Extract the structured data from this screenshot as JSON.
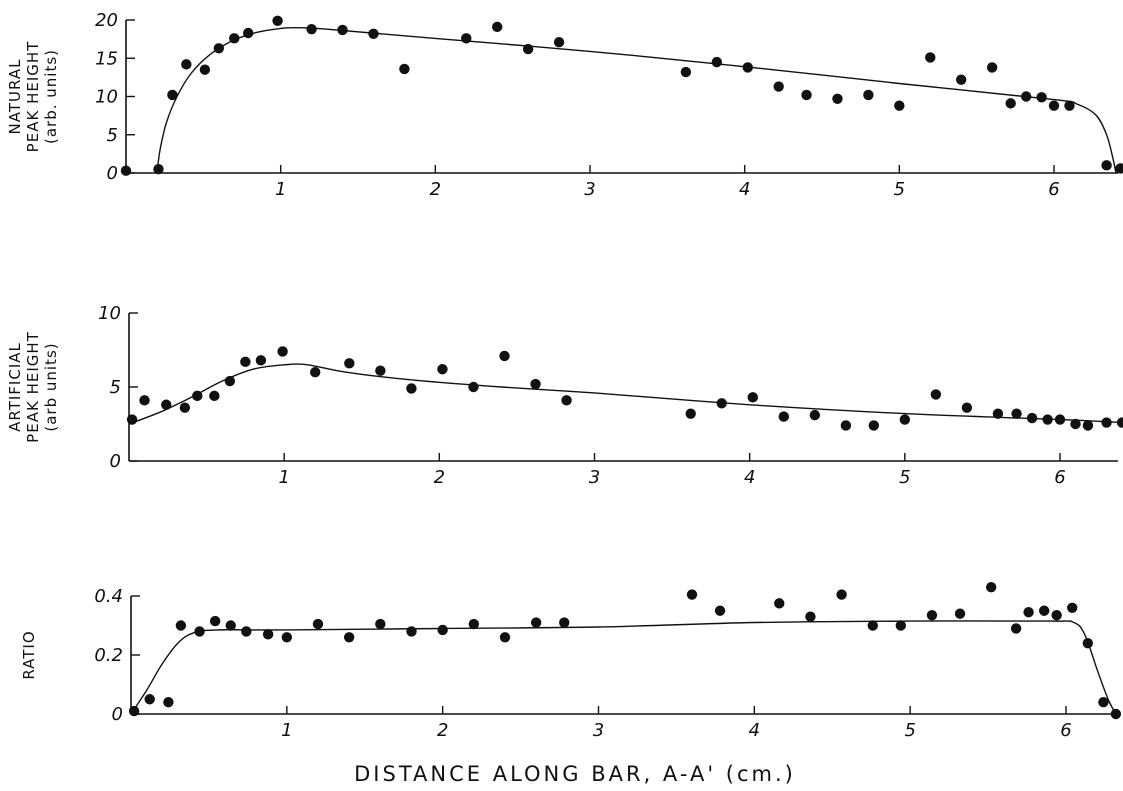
{
  "xlabel": "DISTANCE ALONG BAR, A-A' (cm.)",
  "chart_data": [
    {
      "type": "scatter",
      "ylabel_lines": [
        "NATURAL",
        "PEAK HEIGHT",
        "(arb. units)"
      ],
      "xlim": [
        0,
        6.4
      ],
      "ylim": [
        0,
        20
      ],
      "xticks": [
        1,
        2,
        3,
        4,
        5,
        6
      ],
      "xtick_labels": [
        "1",
        "2",
        "3",
        "4",
        "5",
        "6"
      ],
      "yticks": [
        0,
        5,
        10,
        15,
        20
      ],
      "ytick_labels": [
        "0",
        "5",
        "10",
        "15",
        "20"
      ],
      "grid": false,
      "points": [
        [
          0.0,
          0.3
        ],
        [
          0.21,
          0.5
        ],
        [
          0.3,
          10.2
        ],
        [
          0.39,
          14.2
        ],
        [
          0.51,
          13.5
        ],
        [
          0.6,
          16.3
        ],
        [
          0.7,
          17.6
        ],
        [
          0.79,
          18.3
        ],
        [
          0.98,
          19.9
        ],
        [
          1.2,
          18.8
        ],
        [
          1.4,
          18.7
        ],
        [
          1.6,
          18.2
        ],
        [
          1.8,
          13.6
        ],
        [
          2.2,
          17.6
        ],
        [
          2.4,
          19.1
        ],
        [
          2.6,
          16.2
        ],
        [
          2.8,
          17.1
        ],
        [
          3.62,
          13.2
        ],
        [
          3.82,
          14.5
        ],
        [
          4.02,
          13.8
        ],
        [
          4.22,
          11.3
        ],
        [
          4.4,
          10.2
        ],
        [
          4.6,
          9.7
        ],
        [
          4.8,
          10.2
        ],
        [
          5.0,
          8.8
        ],
        [
          5.2,
          15.1
        ],
        [
          5.4,
          12.2
        ],
        [
          5.6,
          13.8
        ],
        [
          5.72,
          9.1
        ],
        [
          5.82,
          10.0
        ],
        [
          5.92,
          9.9
        ],
        [
          6.0,
          8.8
        ],
        [
          6.1,
          8.8
        ],
        [
          6.34,
          1.0
        ],
        [
          6.43,
          0.6
        ]
      ],
      "fit_curve": [
        [
          0.2,
          0
        ],
        [
          0.22,
          3
        ],
        [
          0.26,
          6.5
        ],
        [
          0.33,
          10
        ],
        [
          0.42,
          13
        ],
        [
          0.55,
          15.6
        ],
        [
          0.7,
          17.4
        ],
        [
          0.85,
          18.4
        ],
        [
          1.0,
          18.9
        ],
        [
          1.1,
          19.0
        ],
        [
          1.3,
          18.8
        ],
        [
          2.0,
          17.6
        ],
        [
          3.0,
          15.9
        ],
        [
          4.0,
          13.9
        ],
        [
          5.0,
          11.7
        ],
        [
          6.0,
          9.6
        ],
        [
          6.15,
          9.0
        ],
        [
          6.27,
          7.6
        ],
        [
          6.34,
          5.0
        ],
        [
          6.38,
          2.0
        ],
        [
          6.4,
          0
        ]
      ]
    },
    {
      "type": "scatter",
      "ylabel_lines": [
        "ARTIFICIAL",
        "PEAK HEIGHT",
        "(arb units)"
      ],
      "xlim": [
        0,
        6.4
      ],
      "ylim": [
        0,
        10
      ],
      "xticks": [
        1,
        2,
        3,
        4,
        5,
        6
      ],
      "xtick_labels": [
        "1",
        "2",
        "3",
        "4",
        "5",
        "6"
      ],
      "yticks": [
        0,
        5,
        10
      ],
      "ytick_labels": [
        "0",
        "5",
        "10"
      ],
      "grid": false,
      "points": [
        [
          0.02,
          2.8
        ],
        [
          0.1,
          4.1
        ],
        [
          0.24,
          3.8
        ],
        [
          0.36,
          3.6
        ],
        [
          0.44,
          4.4
        ],
        [
          0.55,
          4.4
        ],
        [
          0.65,
          5.4
        ],
        [
          0.75,
          6.7
        ],
        [
          0.85,
          6.8
        ],
        [
          0.99,
          7.4
        ],
        [
          1.2,
          6.0
        ],
        [
          1.42,
          6.6
        ],
        [
          1.62,
          6.1
        ],
        [
          1.82,
          4.9
        ],
        [
          2.02,
          6.2
        ],
        [
          2.22,
          5.0
        ],
        [
          2.42,
          7.1
        ],
        [
          2.62,
          5.2
        ],
        [
          2.82,
          4.1
        ],
        [
          3.62,
          3.2
        ],
        [
          3.82,
          3.9
        ],
        [
          4.02,
          4.3
        ],
        [
          4.22,
          3.0
        ],
        [
          4.42,
          3.1
        ],
        [
          4.62,
          2.4
        ],
        [
          4.8,
          2.4
        ],
        [
          5.0,
          2.8
        ],
        [
          5.2,
          4.5
        ],
        [
          5.4,
          3.6
        ],
        [
          5.6,
          3.2
        ],
        [
          5.72,
          3.2
        ],
        [
          5.82,
          2.9
        ],
        [
          5.92,
          2.8
        ],
        [
          6.0,
          2.8
        ],
        [
          6.1,
          2.5
        ],
        [
          6.18,
          2.4
        ],
        [
          6.3,
          2.6
        ],
        [
          6.4,
          2.6
        ]
      ],
      "fit_curve": [
        [
          0.0,
          2.5
        ],
        [
          0.2,
          3.3
        ],
        [
          0.4,
          4.3
        ],
        [
          0.6,
          5.4
        ],
        [
          0.8,
          6.2
        ],
        [
          1.0,
          6.5
        ],
        [
          1.15,
          6.5
        ],
        [
          1.4,
          6.0
        ],
        [
          1.8,
          5.5
        ],
        [
          2.4,
          5.0
        ],
        [
          3.0,
          4.6
        ],
        [
          4.0,
          3.8
        ],
        [
          5.0,
          3.2
        ],
        [
          6.0,
          2.8
        ],
        [
          6.4,
          2.6
        ]
      ]
    },
    {
      "type": "scatter",
      "ylabel_lines": [
        "RATIO"
      ],
      "xlim": [
        0,
        6.4
      ],
      "ylim": [
        0,
        0.4
      ],
      "xticks": [
        1,
        2,
        3,
        4,
        5,
        6
      ],
      "xtick_labels": [
        "1",
        "2",
        "3",
        "4",
        "5",
        "6"
      ],
      "yticks": [
        0,
        0.2,
        0.4
      ],
      "ytick_labels": [
        "0",
        "0.2",
        "0.4"
      ],
      "grid": false,
      "points": [
        [
          0.02,
          0.01
        ],
        [
          0.12,
          0.05
        ],
        [
          0.24,
          0.04
        ],
        [
          0.32,
          0.3
        ],
        [
          0.44,
          0.28
        ],
        [
          0.54,
          0.315
        ],
        [
          0.64,
          0.3
        ],
        [
          0.74,
          0.28
        ],
        [
          0.88,
          0.27
        ],
        [
          1.0,
          0.26
        ],
        [
          1.2,
          0.305
        ],
        [
          1.4,
          0.26
        ],
        [
          1.6,
          0.305
        ],
        [
          1.8,
          0.28
        ],
        [
          2.0,
          0.285
        ],
        [
          2.2,
          0.305
        ],
        [
          2.4,
          0.26
        ],
        [
          2.6,
          0.31
        ],
        [
          2.78,
          0.31
        ],
        [
          3.6,
          0.405
        ],
        [
          3.78,
          0.35
        ],
        [
          4.16,
          0.375
        ],
        [
          4.36,
          0.33
        ],
        [
          4.56,
          0.405
        ],
        [
          4.76,
          0.3
        ],
        [
          4.94,
          0.3
        ],
        [
          5.14,
          0.335
        ],
        [
          5.32,
          0.34
        ],
        [
          5.52,
          0.43
        ],
        [
          5.68,
          0.29
        ],
        [
          5.76,
          0.345
        ],
        [
          5.86,
          0.35
        ],
        [
          5.94,
          0.335
        ],
        [
          6.04,
          0.36
        ],
        [
          6.14,
          0.24
        ],
        [
          6.24,
          0.04
        ],
        [
          6.32,
          0.0
        ]
      ],
      "fit_curve": [
        [
          0.0,
          0.0
        ],
        [
          0.1,
          0.08
        ],
        [
          0.2,
          0.17
        ],
        [
          0.3,
          0.24
        ],
        [
          0.4,
          0.275
        ],
        [
          0.55,
          0.285
        ],
        [
          1.0,
          0.285
        ],
        [
          2.0,
          0.29
        ],
        [
          3.0,
          0.295
        ],
        [
          4.0,
          0.31
        ],
        [
          5.0,
          0.315
        ],
        [
          5.9,
          0.315
        ],
        [
          6.05,
          0.31
        ],
        [
          6.12,
          0.27
        ],
        [
          6.2,
          0.15
        ],
        [
          6.27,
          0.05
        ],
        [
          6.32,
          0.0
        ]
      ]
    }
  ]
}
